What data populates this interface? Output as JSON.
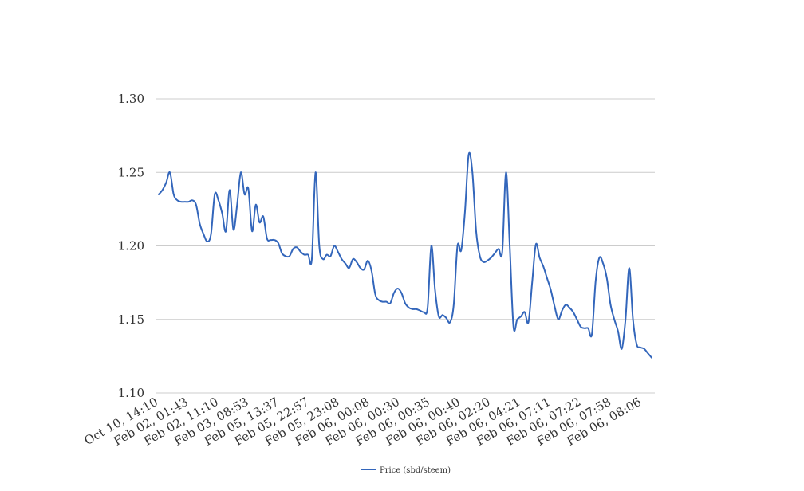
{
  "chart_data": {
    "type": "line",
    "title": "",
    "xlabel": "",
    "ylabel": "",
    "ylim": [
      1.1,
      1.3
    ],
    "y_ticks": [
      "1.10",
      "1.15",
      "1.20",
      "1.25",
      "1.30"
    ],
    "grid": true,
    "legend_position": "bottom",
    "x_tick_labels": [
      "Oct 10, 14:10",
      "Feb 02, 01:43",
      "Feb 02, 11:10",
      "Feb 03, 08:53",
      "Feb 05, 13:37",
      "Feb 05, 22:57",
      "Feb 05, 23:08",
      "Feb 06, 00:08",
      "Feb 06, 00:30",
      "Feb 06, 00:35",
      "Feb 06, 00:40",
      "Feb 06, 02:20",
      "Feb 06, 04:21",
      "Feb 06, 07:11",
      "Feb 06, 07:22",
      "Feb 06, 07:58",
      "Feb 06, 08:06"
    ],
    "series": [
      {
        "name": "Price (sbd/steem)",
        "color": "#3366bb",
        "values": [
          1.235,
          1.238,
          1.243,
          1.25,
          1.235,
          1.231,
          1.23,
          1.23,
          1.23,
          1.231,
          1.228,
          1.215,
          1.208,
          1.203,
          1.208,
          1.235,
          1.231,
          1.222,
          1.21,
          1.238,
          1.211,
          1.228,
          1.25,
          1.235,
          1.239,
          1.21,
          1.228,
          1.216,
          1.22,
          1.205,
          1.204,
          1.204,
          1.202,
          1.195,
          1.193,
          1.193,
          1.198,
          1.199,
          1.196,
          1.194,
          1.194,
          1.191,
          1.25,
          1.2,
          1.191,
          1.194,
          1.193,
          1.2,
          1.196,
          1.191,
          1.188,
          1.185,
          1.191,
          1.189,
          1.185,
          1.184,
          1.19,
          1.183,
          1.167,
          1.163,
          1.162,
          1.162,
          1.161,
          1.168,
          1.171,
          1.168,
          1.161,
          1.158,
          1.157,
          1.157,
          1.156,
          1.155,
          1.158,
          1.2,
          1.17,
          1.152,
          1.153,
          1.151,
          1.148,
          1.16,
          1.2,
          1.197,
          1.223,
          1.262,
          1.25,
          1.21,
          1.193,
          1.189,
          1.19,
          1.192,
          1.195,
          1.198,
          1.196,
          1.25,
          1.2,
          1.145,
          1.15,
          1.152,
          1.155,
          1.148,
          1.175,
          1.201,
          1.192,
          1.186,
          1.178,
          1.17,
          1.159,
          1.15,
          1.156,
          1.16,
          1.158,
          1.155,
          1.15,
          1.145,
          1.144,
          1.144,
          1.14,
          1.176,
          1.192,
          1.188,
          1.178,
          1.16,
          1.15,
          1.142,
          1.13,
          1.15,
          1.185,
          1.15,
          1.133,
          1.131,
          1.13,
          1.127,
          1.124
        ]
      }
    ]
  }
}
